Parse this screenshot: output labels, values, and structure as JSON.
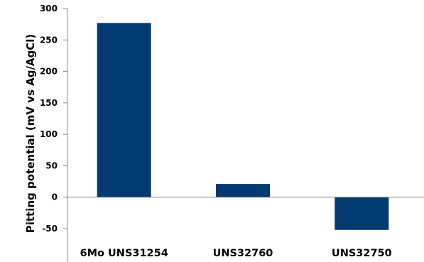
{
  "chart_data": {
    "type": "bar",
    "title": "",
    "xlabel": "",
    "ylabel": "Pitting potential (mV vs Ag/AgCl)",
    "categories": [
      "6Mo UNS31254",
      "UNS32760",
      "UNS32750"
    ],
    "values": [
      277,
      21,
      -52
    ],
    "ylim": [
      -50,
      300
    ],
    "yticks": [
      -50,
      0,
      50,
      100,
      150,
      200,
      250,
      300
    ],
    "grid": false,
    "legend": "none",
    "bar_color": "#003a70"
  }
}
